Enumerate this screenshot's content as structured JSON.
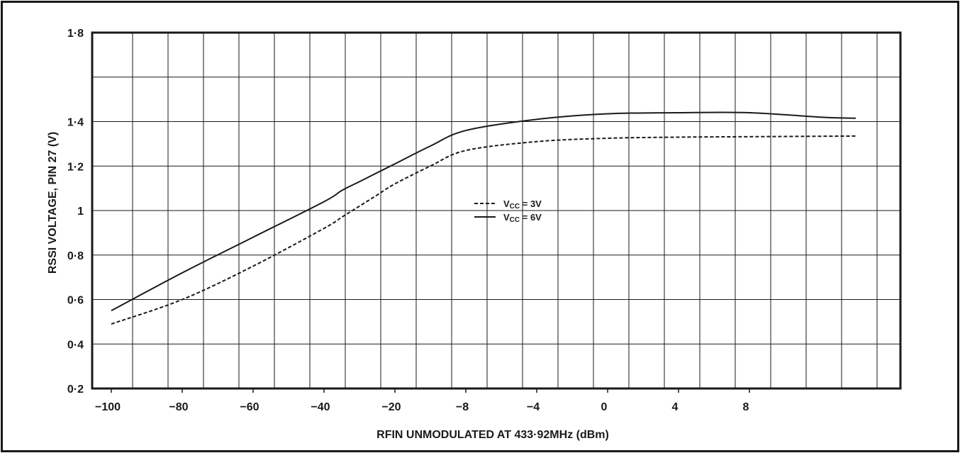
{
  "chart_data": {
    "type": "line",
    "xlabel": "RFIN UNMODULATED AT 433·92MHz (dBm)",
    "ylabel": "RSSI VOLTAGE, PIN 27 (V)",
    "ylim": [
      0.2,
      1.8
    ],
    "y_ticks": [
      "0·2",
      "0·4",
      "0·6",
      "0·8",
      "1",
      "1·2",
      "1·4",
      "1·8"
    ],
    "y_tick_values": [
      0.2,
      0.4,
      0.6,
      0.8,
      1.0,
      1.2,
      1.4,
      1.8
    ],
    "x_ticks": [
      "−100",
      "−80",
      "−60",
      "−40",
      "−20",
      "−8",
      "−4",
      "0",
      "4",
      "8"
    ],
    "grid": true,
    "legend_position": "center",
    "series": [
      {
        "name": "VCC = 3V",
        "style": "dashed",
        "x_positions": [
          0,
          1,
          2,
          3,
          3.25,
          3.5,
          3.75,
          4,
          4.5,
          5,
          6,
          7,
          8,
          9,
          10.5
        ],
        "values": [
          0.49,
          0.6,
          0.75,
          0.92,
          0.97,
          1.02,
          1.07,
          1.12,
          1.2,
          1.27,
          1.31,
          1.325,
          1.33,
          1.332,
          1.335
        ]
      },
      {
        "name": "VCC = 6V",
        "style": "solid",
        "x_positions": [
          0,
          1,
          2,
          3,
          3.25,
          3.5,
          3.75,
          4,
          4.5,
          5,
          6,
          7,
          8,
          9,
          10,
          10.5
        ],
        "values": [
          0.55,
          0.72,
          0.88,
          1.04,
          1.09,
          1.13,
          1.17,
          1.21,
          1.29,
          1.36,
          1.41,
          1.435,
          1.44,
          1.44,
          1.42,
          1.415
        ]
      }
    ],
    "legend": {
      "entries": [
        {
          "prefix": "V",
          "sub": "CC",
          "suffix": " = 3V",
          "style": "dashed"
        },
        {
          "prefix": "V",
          "sub": "CC",
          "suffix": " = 6V",
          "style": "solid"
        }
      ]
    }
  }
}
